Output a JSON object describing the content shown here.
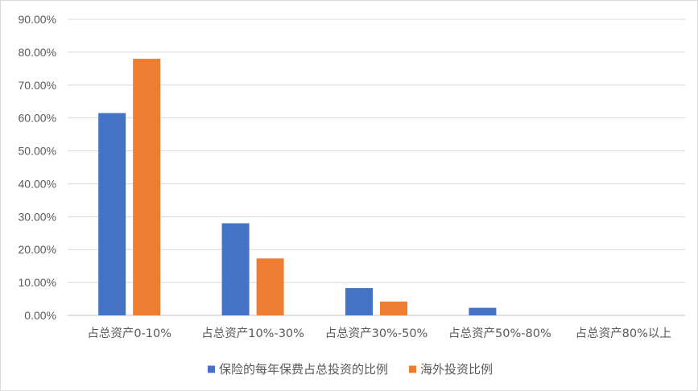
{
  "chart_data": {
    "type": "bar",
    "categories": [
      "占总资产0-10%",
      "占总资产10%-30%",
      "占总资产30%-50%",
      "占总资产50%-80%",
      "占总资产80%以上"
    ],
    "series": [
      {
        "name": "保险的每年保费占总投资的比例",
        "values": [
          61.5,
          28.0,
          8.3,
          2.3,
          0.0
        ],
        "color": "#4472C4"
      },
      {
        "name": "海外投资比例",
        "values": [
          78.0,
          17.3,
          4.2,
          0.0,
          0.0
        ],
        "color": "#ED7D31"
      }
    ],
    "yticks": [
      "0.00%",
      "10.00%",
      "20.00%",
      "30.00%",
      "40.00%",
      "50.00%",
      "60.00%",
      "70.00%",
      "80.00%",
      "90.00%"
    ],
    "ylim": [
      0,
      90
    ],
    "grid": true,
    "legend_position": "bottom"
  }
}
